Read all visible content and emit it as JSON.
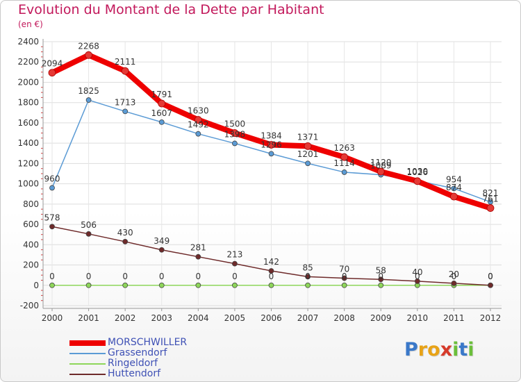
{
  "title": "Evolution du Montant de la Dette par Habitant",
  "unit": "(en €)",
  "chart_data": {
    "type": "line",
    "x": [
      "2000",
      "2001",
      "2002",
      "2003",
      "2004",
      "2005",
      "2006",
      "2007",
      "2008",
      "2009",
      "2010",
      "2011",
      "2012"
    ],
    "ylim": [
      -200,
      2400
    ],
    "yticks": [
      -200,
      0,
      200,
      400,
      600,
      800,
      1000,
      1200,
      1400,
      1600,
      1800,
      2000,
      2200,
      2400
    ],
    "grid": true,
    "series": [
      {
        "name": "MORSCHWILLER",
        "color": "#ee0000",
        "width": 8,
        "values": [
          2094,
          2268,
          2111,
          1791,
          1630,
          1500,
          1384,
          1371,
          1263,
          1120,
          1026,
          874,
          761
        ]
      },
      {
        "name": "Grassendorf",
        "color": "#5b9bd5",
        "width": 1.5,
        "values": [
          960,
          1825,
          1713,
          1607,
          1492,
          1398,
          1296,
          1201,
          1114,
          1089,
          1030,
          954,
          821
        ]
      },
      {
        "name": "Ringeldorf",
        "color": "#8ed65a",
        "width": 1.5,
        "values": [
          0,
          0,
          0,
          0,
          0,
          0,
          0,
          0,
          0,
          0,
          0,
          0,
          0
        ]
      },
      {
        "name": "Huttendorf",
        "color": "#6e2a2a",
        "width": 1.5,
        "values": [
          578,
          506,
          430,
          349,
          281,
          213,
          142,
          85,
          70,
          58,
          40,
          20,
          0
        ]
      }
    ]
  },
  "legend_placement": "bottom-left",
  "brand": {
    "letters": [
      "P",
      "r",
      "o",
      "x",
      "i",
      "t",
      "i"
    ],
    "colors": [
      "#3a78c9",
      "#e8a317",
      "#e8a317",
      "#d63a2a",
      "#6bbf3a",
      "#3a78c9",
      "#6bbf3a"
    ]
  }
}
